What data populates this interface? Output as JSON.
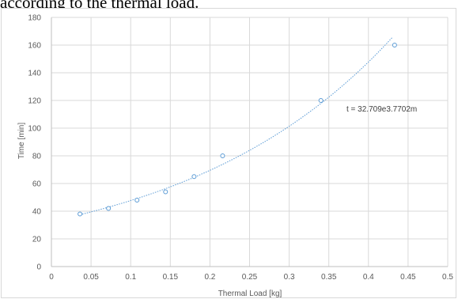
{
  "caption_fragment": "according to the thermal load.",
  "chart_data": {
    "type": "scatter",
    "title": "",
    "xlabel": "Thermal Load [kg]",
    "ylabel": "Time [min]",
    "xlim": [
      0,
      0.5
    ],
    "ylim": [
      0,
      180
    ],
    "x_ticks": [
      "0",
      "0.05",
      "0.1",
      "0.15",
      "0.2",
      "0.25",
      "0.3",
      "0.35",
      "0.4",
      "0.45",
      "0.5"
    ],
    "y_ticks": [
      "0",
      "20",
      "40",
      "60",
      "80",
      "100",
      "120",
      "140",
      "160",
      "180"
    ],
    "grid": true,
    "series": [
      {
        "marker": "hollow-circle",
        "color": "#5b9bd5",
        "points": [
          {
            "x": 0.036,
            "y": 38
          },
          {
            "x": 0.072,
            "y": 42
          },
          {
            "x": 0.108,
            "y": 48
          },
          {
            "x": 0.144,
            "y": 54
          },
          {
            "x": 0.18,
            "y": 65
          },
          {
            "x": 0.216,
            "y": 80
          },
          {
            "x": 0.34,
            "y": 120
          },
          {
            "x": 0.433,
            "y": 160
          }
        ]
      }
    ],
    "trendline": {
      "type": "exponential",
      "coefficient": 32.709,
      "exponent": 3.7702,
      "x_range": [
        0.036,
        0.43
      ],
      "color": "#5b9bd5",
      "style": "dotted",
      "equation_label": "t = 32.709e3.7702m"
    }
  }
}
